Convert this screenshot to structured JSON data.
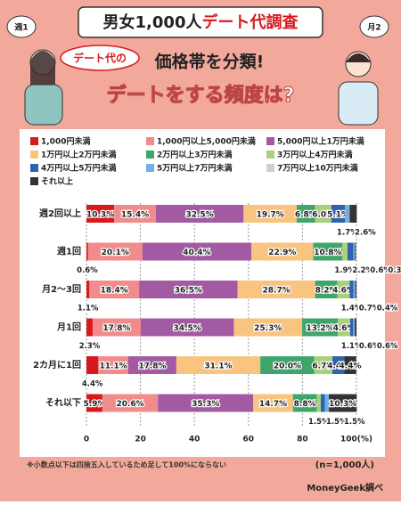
{
  "header": {
    "title_a": "男女1,000人",
    "title_b": "デート代調査",
    "bubble_left": "週1",
    "bubble_right": "月2",
    "tag": "デート代の",
    "subtitle": "価格帯を分類!",
    "question": "デートをする頻度は?"
  },
  "chart_data": {
    "type": "stacked_bar_horizontal",
    "categories": [
      "週2回以上",
      "週1回",
      "月2～3回",
      "月1回",
      "2カ月に1回",
      "それ以下"
    ],
    "series": [
      {
        "name": "1,000円未満",
        "color": "#d7191e",
        "values": [
          10.3,
          0.6,
          1.1,
          2.3,
          4.4,
          5.9
        ],
        "value_labels": [
          "10.3%",
          "0.6%",
          "1.1%",
          "2.3%",
          "4.4%",
          "5.9%"
        ]
      },
      {
        "name": "1,000円以上5,000円未満",
        "color": "#f28b8b",
        "values": [
          15.4,
          20.1,
          18.4,
          17.8,
          11.1,
          20.6
        ],
        "value_labels": [
          "15.4%",
          "20.1%",
          "18.4%",
          "17.8%",
          "11.1%",
          "20.6%"
        ]
      },
      {
        "name": "5,000円以上1万円未満",
        "color": "#a25ba2",
        "values": [
          32.5,
          40.4,
          36.5,
          34.5,
          17.8,
          35.3
        ],
        "value_labels": [
          "32.5%",
          "40.4%",
          "36.5%",
          "34.5%",
          "17.8%",
          "35.3%"
        ]
      },
      {
        "name": "1万円以上2万円未満",
        "color": "#f8c47f",
        "values": [
          19.7,
          22.9,
          28.7,
          25.3,
          31.1,
          14.7
        ],
        "value_labels": [
          "19.7%",
          "22.9%",
          "28.7%",
          "25.3%",
          "31.1%",
          "14.7%"
        ]
      },
      {
        "name": "2万円以上3万円未満",
        "color": "#3fa66b",
        "values": [
          6.8,
          10.8,
          8.2,
          13.2,
          20.0,
          8.8
        ],
        "value_labels": [
          "6.8%",
          "10.8%",
          "8.2%",
          "13.2%",
          "20.0%",
          "8.8%"
        ]
      },
      {
        "name": "3万円以上4万円未満",
        "color": "#a9d17b",
        "values": [
          6.0,
          1.9,
          4.6,
          4.6,
          6.7,
          1.5
        ],
        "value_labels": [
          "6.0%",
          "1.9%",
          "4.6%",
          "4.6%",
          "6.7%",
          "1.5%"
        ]
      },
      {
        "name": "4万円以上5万円未満",
        "color": "#2f62b0",
        "values": [
          5.1,
          2.2,
          1.4,
          1.1,
          4.4,
          1.5
        ],
        "value_labels": [
          "5.1%",
          "2.2%",
          "1.4%",
          "1.1%",
          "4.4%",
          "1.5%"
        ]
      },
      {
        "name": "5万円以上7万円未満",
        "color": "#77aee0",
        "values": [
          1.7,
          0.6,
          0.7,
          0.6,
          null,
          1.5
        ],
        "value_labels": [
          "1.7%",
          "0.6%",
          "0.7%",
          "0.6%",
          null,
          "1.5%"
        ]
      },
      {
        "name": "7万円以上10万円未満",
        "color": "#cfcfcf",
        "values": [
          null,
          null,
          null,
          null,
          null,
          null
        ],
        "value_labels": [
          null,
          null,
          null,
          null,
          null,
          null
        ]
      },
      {
        "name": "それ以上",
        "color": "#333333",
        "values": [
          2.6,
          0.3,
          0.4,
          0.6,
          4.4,
          10.3
        ],
        "value_labels": [
          "2.6%",
          "0.3%",
          "0.4%",
          "0.6%",
          "4.4%",
          "10.3%"
        ]
      }
    ],
    "xlim": [
      0,
      100
    ],
    "xticks": [
      0,
      20,
      40,
      60,
      80,
      {
        "value": 100,
        "label": "100(%)"
      }
    ],
    "grid": true,
    "note": "※小数点以下は四捨五入しているため足して100%にならない",
    "sample": "(n=1,000人)",
    "source": "MoneyGeek調べ"
  }
}
